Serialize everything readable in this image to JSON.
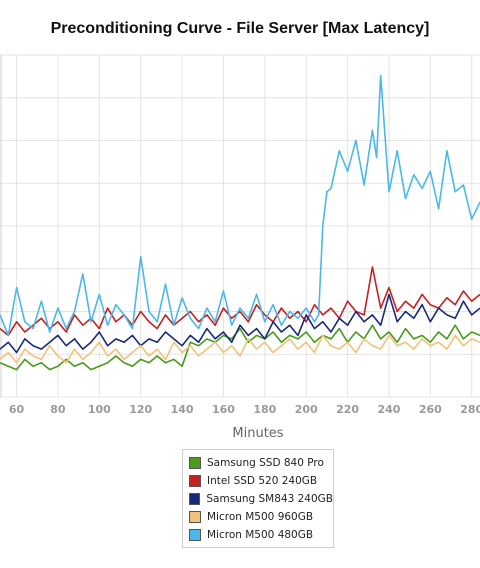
{
  "chart_data": {
    "type": "line",
    "title": "Preconditioning Curve - File Server [Max Latency]",
    "xlabel": "Minutes",
    "ylabel": "",
    "xlim": [
      52,
      284
    ],
    "ylim": [
      0,
      100
    ],
    "x_ticks": [
      "60",
      "80",
      "100",
      "120",
      "140",
      "160",
      "180",
      "200",
      "220",
      "240",
      "260",
      "280"
    ],
    "grid": "vertical and horizontal",
    "legend_position": "bottom-center",
    "series": [
      {
        "name": "Samsung SSD 840 Pro",
        "color": "#4a9a1c",
        "x": [
          52,
          56,
          60,
          64,
          68,
          72,
          76,
          80,
          84,
          88,
          92,
          96,
          100,
          104,
          108,
          112,
          116,
          120,
          124,
          128,
          132,
          136,
          140,
          144,
          148,
          152,
          156,
          160,
          164,
          168,
          172,
          176,
          180,
          184,
          188,
          192,
          196,
          200,
          204,
          208,
          212,
          216,
          220,
          224,
          228,
          232,
          236,
          240,
          244,
          248,
          252,
          256,
          260,
          264,
          268,
          272,
          276,
          280,
          284
        ],
        "values": [
          10,
          9,
          8,
          11,
          9,
          10,
          8,
          9,
          11,
          9,
          10,
          8,
          9,
          10,
          12,
          10,
          9,
          11,
          10,
          12,
          10,
          11,
          9,
          16,
          15,
          17,
          16,
          18,
          17,
          20,
          16,
          18,
          17,
          19,
          16,
          18,
          17,
          19,
          16,
          18,
          17,
          20,
          16,
          19,
          17,
          21,
          17,
          19,
          16,
          20,
          17,
          18,
          16,
          19,
          17,
          21,
          17,
          19,
          18
        ]
      },
      {
        "name": "Intel SSD 520 240GB",
        "color": "#c4211f",
        "x": [
          52,
          56,
          60,
          64,
          68,
          72,
          76,
          80,
          84,
          88,
          92,
          96,
          100,
          104,
          108,
          112,
          116,
          120,
          124,
          128,
          132,
          136,
          140,
          144,
          148,
          152,
          156,
          160,
          164,
          168,
          172,
          176,
          180,
          184,
          188,
          192,
          196,
          200,
          204,
          208,
          212,
          216,
          220,
          224,
          228,
          232,
          236,
          240,
          244,
          248,
          252,
          256,
          260,
          264,
          268,
          272,
          276,
          280,
          284
        ],
        "values": [
          20,
          18,
          22,
          19,
          21,
          23,
          20,
          22,
          19,
          24,
          21,
          23,
          20,
          26,
          22,
          24,
          21,
          25,
          22,
          20,
          24,
          21,
          23,
          25,
          22,
          24,
          21,
          26,
          23,
          25,
          22,
          27,
          24,
          22,
          26,
          23,
          25,
          22,
          27,
          24,
          26,
          23,
          28,
          25,
          24,
          38,
          26,
          32,
          25,
          28,
          26,
          30,
          27,
          26,
          29,
          27,
          31,
          28,
          30
        ]
      },
      {
        "name": "Samsung SM843 240GB",
        "color": "#1a2a7a",
        "x": [
          52,
          56,
          60,
          64,
          68,
          72,
          76,
          80,
          84,
          88,
          92,
          96,
          100,
          104,
          108,
          112,
          116,
          120,
          124,
          128,
          132,
          136,
          140,
          144,
          148,
          152,
          156,
          160,
          164,
          168,
          172,
          176,
          180,
          184,
          188,
          192,
          196,
          200,
          204,
          208,
          212,
          216,
          220,
          224,
          228,
          232,
          236,
          240,
          244,
          248,
          252,
          256,
          260,
          264,
          268,
          272,
          276,
          280,
          284
        ],
        "values": [
          14,
          16,
          13,
          17,
          15,
          14,
          16,
          18,
          15,
          17,
          14,
          16,
          19,
          15,
          17,
          16,
          18,
          15,
          17,
          16,
          19,
          17,
          15,
          18,
          16,
          20,
          17,
          19,
          16,
          21,
          18,
          20,
          17,
          22,
          19,
          21,
          18,
          24,
          20,
          22,
          19,
          23,
          21,
          25,
          22,
          24,
          21,
          30,
          22,
          25,
          23,
          27,
          22,
          26,
          24,
          23,
          28,
          24,
          26
        ]
      },
      {
        "name": "Micron M500 960GB",
        "color": "#f0c27a",
        "x": [
          52,
          56,
          60,
          64,
          68,
          72,
          76,
          80,
          84,
          88,
          92,
          96,
          100,
          104,
          108,
          112,
          116,
          120,
          124,
          128,
          132,
          136,
          140,
          144,
          148,
          152,
          156,
          160,
          164,
          168,
          172,
          176,
          180,
          184,
          188,
          192,
          196,
          200,
          204,
          208,
          212,
          216,
          220,
          224,
          228,
          232,
          236,
          240,
          244,
          248,
          252,
          256,
          260,
          264,
          268,
          272,
          276,
          280,
          284
        ],
        "values": [
          11,
          13,
          10,
          14,
          12,
          11,
          15,
          12,
          10,
          14,
          11,
          13,
          16,
          12,
          14,
          11,
          13,
          15,
          12,
          14,
          11,
          16,
          13,
          15,
          12,
          14,
          16,
          13,
          15,
          12,
          17,
          14,
          16,
          13,
          15,
          17,
          14,
          16,
          13,
          18,
          15,
          14,
          16,
          13,
          17,
          15,
          14,
          18,
          15,
          16,
          14,
          17,
          15,
          16,
          14,
          18,
          15,
          17,
          16
        ]
      },
      {
        "name": "Micron M500 480GB",
        "color": "#4bb8ea",
        "x": [
          52,
          56,
          60,
          64,
          68,
          72,
          76,
          80,
          84,
          88,
          92,
          96,
          100,
          104,
          108,
          112,
          116,
          120,
          124,
          128,
          132,
          136,
          140,
          144,
          148,
          152,
          156,
          160,
          164,
          168,
          172,
          176,
          180,
          184,
          188,
          192,
          196,
          200,
          204,
          206,
          208,
          210,
          212,
          216,
          220,
          224,
          228,
          232,
          234,
          236,
          240,
          244,
          248,
          252,
          256,
          260,
          264,
          268,
          272,
          276,
          280,
          284
        ],
        "values": [
          24,
          18,
          32,
          22,
          20,
          28,
          19,
          26,
          20,
          25,
          36,
          22,
          30,
          21,
          27,
          24,
          20,
          41,
          25,
          22,
          33,
          21,
          29,
          23,
          20,
          26,
          22,
          31,
          21,
          26,
          23,
          30,
          22,
          27,
          21,
          25,
          23,
          26,
          22,
          24,
          50,
          60,
          61,
          72,
          66,
          75,
          62,
          78,
          70,
          94,
          60,
          72,
          58,
          65,
          61,
          66,
          55,
          72,
          60,
          62,
          52,
          57
        ]
      }
    ]
  }
}
